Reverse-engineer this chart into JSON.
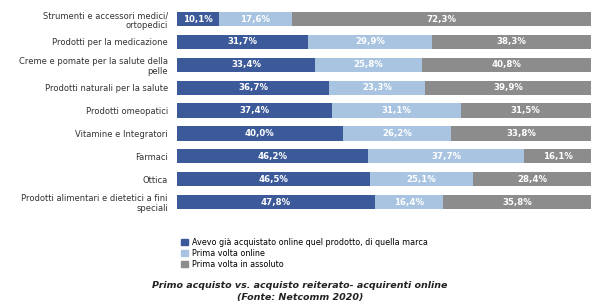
{
  "categories": [
    "Prodotti alimentari e dietetici a fini\nspeciali",
    "Ottica",
    "Farmaci",
    "Vitamine e Integratori",
    "Prodotti omeopatici",
    "Prodotti naturali per la salute",
    "Creme e pomate per la salute della\npelle",
    "Prodotti per la medicazione",
    "Strumenti e accessori medici/\nortopedici"
  ],
  "series1": [
    47.8,
    46.5,
    46.2,
    40.0,
    37.4,
    36.7,
    33.4,
    31.7,
    10.1
  ],
  "series2": [
    16.4,
    25.1,
    37.7,
    26.2,
    31.1,
    23.3,
    25.8,
    29.9,
    17.6
  ],
  "series3": [
    35.8,
    28.4,
    16.1,
    33.8,
    31.5,
    39.9,
    40.8,
    38.3,
    72.3
  ],
  "color1": "#3C5A9A",
  "color2": "#A8C4E0",
  "color3": "#8C8C8C",
  "legend1": "Avevo già acquistato online quel prodotto, di quella marca",
  "legend2": "Prima volta online",
  "legend3": "Prima volta in assoluto",
  "title_line1": "Primo acquisto vs. acquisto reiterato- acquirenti online",
  "title_line2": "(Fonte: Netcomm 2020)",
  "bg_color": "#FFFFFF",
  "bar_height": 0.62,
  "label_fontsize": 6.2,
  "category_fontsize": 6.0
}
